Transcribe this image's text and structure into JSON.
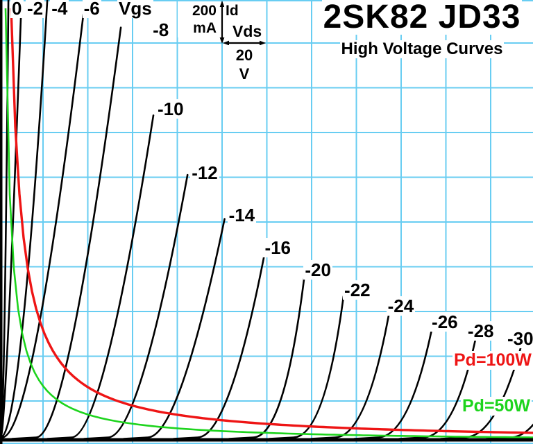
{
  "title": "2SK82 JD33",
  "subtitle": "High Voltage Curves",
  "legend": {
    "y_scale_value": "200",
    "y_scale_unit": "mA",
    "y_axis_name": "Id",
    "x_axis_name": "Vds",
    "x_scale_value": "20",
    "x_scale_unit": "V",
    "vgs_header": "Vgs"
  },
  "colors": {
    "grid": "#68cdf2",
    "curve": "#000000",
    "pd100": "#ee1515",
    "pd50": "#1dd41d",
    "background": "#ffffff"
  },
  "chart_data": {
    "type": "line",
    "title": "2SK82 JD33 High Voltage Curves",
    "xlabel": "Vds (V)",
    "ylabel": "Id (mA)",
    "x_volts_per_div": 20,
    "y_ma_per_div": 200,
    "xlim": [
      0,
      238
    ],
    "ylim_ma": [
      0,
      1975
    ],
    "grid": "on",
    "curves": [
      {
        "label": "0",
        "vgs_v": 0,
        "v_offset_v": 1.9,
        "r_ohm": 0.93
      },
      {
        "label": "-2",
        "vgs_v": -2,
        "v_offset_v": 2.5,
        "r_ohm": 3.6
      },
      {
        "label": "-4",
        "vgs_v": -4,
        "v_offset_v": 9.3,
        "r_ohm": 6.0
      },
      {
        "label": "-6",
        "vgs_v": -6,
        "v_offset_v": 14.9,
        "r_ohm": 11.7
      },
      {
        "label": "-8",
        "vgs_v": -8,
        "v_offset_v": 30.1,
        "r_ohm": 12.9
      },
      {
        "label": "-10",
        "vgs_v": -10,
        "v_offset_v": 45.9,
        "r_ohm": 15.5
      },
      {
        "label": "-12",
        "vgs_v": -12,
        "v_offset_v": 62.3,
        "r_ohm": 18.0
      },
      {
        "label": "-14",
        "vgs_v": -14,
        "v_offset_v": 80.0,
        "r_ohm": 20.4
      },
      {
        "label": "-16",
        "vgs_v": -16,
        "v_offset_v": 102.3,
        "r_ohm": 18.9
      },
      {
        "label": "-20",
        "vgs_v": -20,
        "v_offset_v": 127.1,
        "r_ohm": 12.0
      },
      {
        "label": "-22",
        "vgs_v": -22,
        "v_offset_v": 145.1,
        "r_ohm": 12.9
      },
      {
        "label": "-24",
        "vgs_v": -24,
        "v_offset_v": 163.7,
        "r_ohm": 17.6
      },
      {
        "label": "-26",
        "vgs_v": -26,
        "v_offset_v": 183.0,
        "r_ohm": 19.7
      },
      {
        "label": "-28",
        "vgs_v": -28,
        "v_offset_v": 203.1,
        "r_ohm": 20.4
      },
      {
        "label": "-30",
        "vgs_v": -30,
        "v_offset_v": 221.7,
        "r_ohm": 26.0
      },
      {
        "label": "",
        "vgs_v": -32,
        "v_offset_v": 242.0,
        "r_ohm": 26.0
      }
    ],
    "power_limit_curves": [
      {
        "label": "Pd=100W",
        "watts": 100
      },
      {
        "label": "Pd=50W",
        "watts": 50
      }
    ],
    "max_current_a": 1.975
  }
}
